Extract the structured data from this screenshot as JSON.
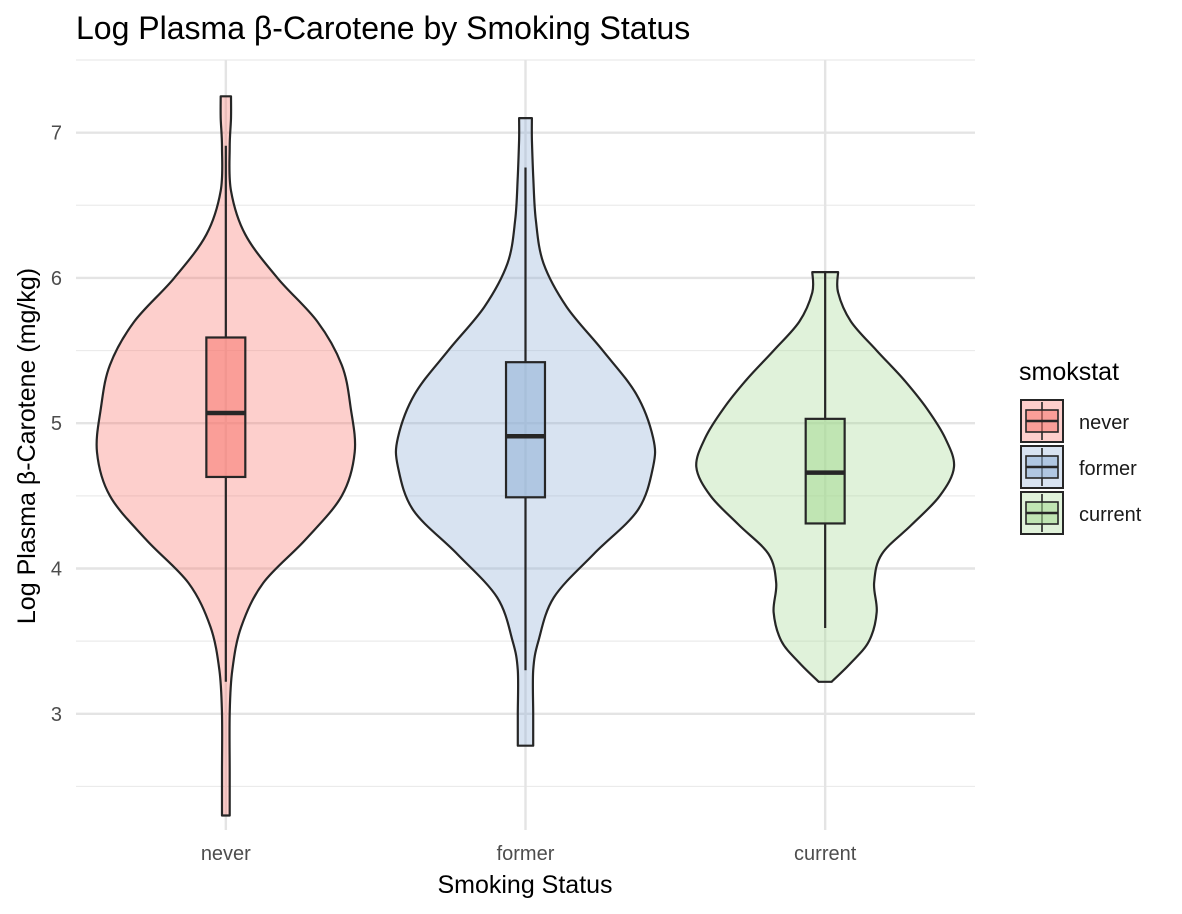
{
  "chart_data": {
    "type": "violin",
    "title": "Log Plasma β-Carotene by Smoking Status",
    "xlabel": "Smoking Status",
    "ylabel": "Log Plasma β-Carotene (mg/kg)",
    "ylim": [
      2.2,
      7.5
    ],
    "y_ticks": [
      3,
      4,
      5,
      6,
      7
    ],
    "y_minor_ticks": [
      2.5,
      3.5,
      4.5,
      5.5,
      6.5,
      7.5
    ],
    "grid": true,
    "categories": [
      "never",
      "former",
      "current"
    ],
    "legend": {
      "title": "smokstat",
      "position": "right",
      "entries": [
        "never",
        "former",
        "current"
      ]
    },
    "series": [
      {
        "name": "never",
        "color": "#F8766D",
        "violin_min": 2.3,
        "violin_max": 7.25,
        "box": {
          "whisker_low": 3.22,
          "q1": 4.63,
          "median": 5.07,
          "q3": 5.59,
          "whisker_high": 6.91
        },
        "density_profile": [
          [
            2.3,
            0.03
          ],
          [
            2.6,
            0.03
          ],
          [
            3.0,
            0.03
          ],
          [
            3.3,
            0.05
          ],
          [
            3.6,
            0.12
          ],
          [
            3.9,
            0.29
          ],
          [
            4.2,
            0.62
          ],
          [
            4.5,
            0.9
          ],
          [
            4.8,
            1.0
          ],
          [
            5.1,
            0.97
          ],
          [
            5.4,
            0.9
          ],
          [
            5.7,
            0.71
          ],
          [
            6.0,
            0.4
          ],
          [
            6.3,
            0.15
          ],
          [
            6.6,
            0.04
          ],
          [
            6.9,
            0.03
          ],
          [
            7.1,
            0.04
          ],
          [
            7.25,
            0.04
          ]
        ]
      },
      {
        "name": "former",
        "color": "#8FB0D6",
        "violin_min": 2.78,
        "violin_max": 7.1,
        "box": {
          "whisker_low": 3.3,
          "q1": 4.49,
          "median": 4.91,
          "q3": 5.42,
          "whisker_high": 6.76
        },
        "density_profile": [
          [
            2.78,
            0.06
          ],
          [
            3.0,
            0.06
          ],
          [
            3.3,
            0.06
          ],
          [
            3.5,
            0.1
          ],
          [
            3.8,
            0.22
          ],
          [
            4.1,
            0.53
          ],
          [
            4.4,
            0.87
          ],
          [
            4.7,
            0.99
          ],
          [
            4.9,
            0.99
          ],
          [
            5.2,
            0.86
          ],
          [
            5.5,
            0.6
          ],
          [
            5.8,
            0.32
          ],
          [
            6.1,
            0.14
          ],
          [
            6.4,
            0.08
          ],
          [
            6.7,
            0.06
          ],
          [
            6.95,
            0.05
          ],
          [
            7.1,
            0.05
          ]
        ]
      },
      {
        "name": "current",
        "color": "#A5DA94",
        "violin_min": 3.22,
        "violin_max": 6.04,
        "box": {
          "whisker_low": 3.59,
          "q1": 4.31,
          "median": 4.66,
          "q3": 5.03,
          "whisker_high": 6.04
        },
        "density_profile": [
          [
            3.22,
            0.05
          ],
          [
            3.35,
            0.2
          ],
          [
            3.5,
            0.34
          ],
          [
            3.7,
            0.4
          ],
          [
            3.9,
            0.38
          ],
          [
            4.1,
            0.44
          ],
          [
            4.3,
            0.67
          ],
          [
            4.5,
            0.89
          ],
          [
            4.7,
            1.0
          ],
          [
            4.9,
            0.93
          ],
          [
            5.1,
            0.79
          ],
          [
            5.3,
            0.61
          ],
          [
            5.5,
            0.4
          ],
          [
            5.7,
            0.2
          ],
          [
            5.9,
            0.1
          ],
          [
            6.04,
            0.1
          ]
        ]
      }
    ]
  }
}
